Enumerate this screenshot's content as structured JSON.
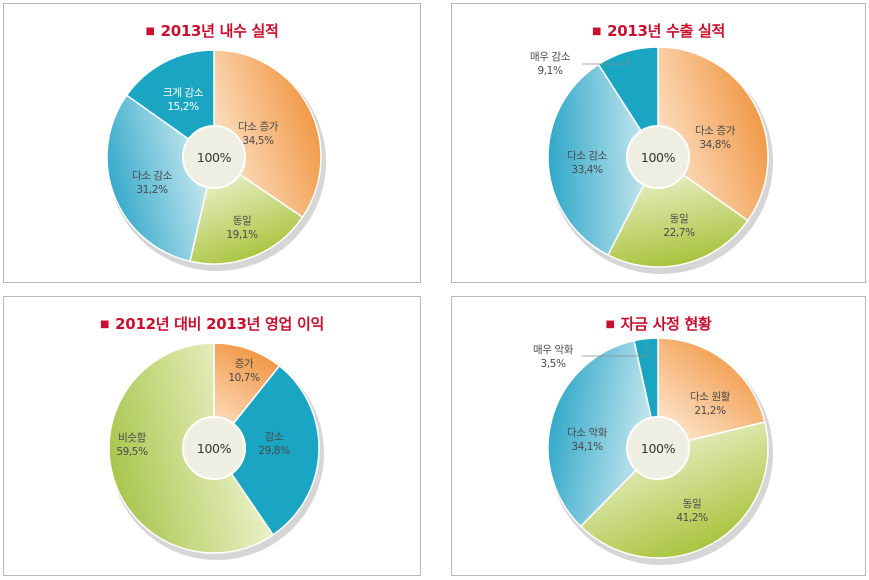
{
  "colors": {
    "title_red": "#c8102e",
    "orange": "#f0a158",
    "green": "#b4cc56",
    "blue_mid": "#4ab0cf",
    "blue_dark": "#18a3c0",
    "green_light": "#ccdb8a"
  },
  "chart_data": [
    {
      "type": "pie",
      "title": "2013년 내수 실적",
      "center_label": "100%",
      "slices": [
        {
          "name": "다소 증가",
          "value": 34.5,
          "label": "34,5%",
          "color": "orange"
        },
        {
          "name": "동일",
          "value": 19.1,
          "label": "19,1%",
          "color": "green"
        },
        {
          "name": "다소 감소",
          "value": 31.2,
          "label": "31,2%",
          "color": "blue_mid"
        },
        {
          "name": "크게 감소",
          "value": 15.2,
          "label": "15,2%",
          "color": "blue_dark"
        }
      ]
    },
    {
      "type": "pie",
      "title": "2013년 수출 실적",
      "center_label": "100%",
      "slices": [
        {
          "name": "다소 증가",
          "value": 34.8,
          "label": "34,8%",
          "color": "orange"
        },
        {
          "name": "동일",
          "value": 22.7,
          "label": "22,7%",
          "color": "green"
        },
        {
          "name": "다소 감소",
          "value": 33.4,
          "label": "33,4%",
          "color": "blue_mid"
        },
        {
          "name": "매우 감소",
          "value": 9.1,
          "label": "9,1%",
          "color": "blue_dark"
        }
      ]
    },
    {
      "type": "pie",
      "title": "2012년 대비 2013년 영업 이익",
      "center_label": "100%",
      "slices": [
        {
          "name": "증가",
          "value": 10.7,
          "label": "10,7%",
          "color": "orange"
        },
        {
          "name": "감소",
          "value": 29.8,
          "label": "29,8%",
          "color": "blue_dark"
        },
        {
          "name": "비슷함",
          "value": 59.5,
          "label": "59,5%",
          "color": "green_light"
        }
      ]
    },
    {
      "type": "pie",
      "title": "자금 사정 현황",
      "center_label": "100%",
      "slices": [
        {
          "name": "다소 원활",
          "value": 21.2,
          "label": "21,2%",
          "color": "orange"
        },
        {
          "name": "동일",
          "value": 41.2,
          "label": "41,2%",
          "color": "green"
        },
        {
          "name": "다소 악화",
          "value": 34.1,
          "label": "34,1%",
          "color": "blue_mid"
        },
        {
          "name": "매우 악화",
          "value": 3.5,
          "label": "3,5%",
          "color": "blue_dark"
        }
      ]
    }
  ]
}
